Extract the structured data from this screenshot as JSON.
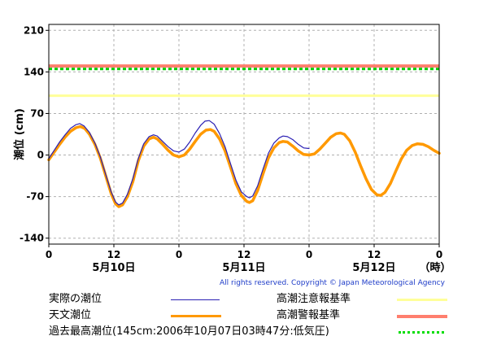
{
  "chart_data": {
    "type": "line",
    "ylabel": "潮位 (cm)",
    "ylim": [
      -150,
      220
    ],
    "yticks": [
      -140,
      -70,
      0,
      70,
      140,
      210
    ],
    "xlim": [
      0,
      72
    ],
    "xticks": [
      {
        "hour": 0,
        "label": "0"
      },
      {
        "hour": 12,
        "label": "12"
      },
      {
        "hour": 24,
        "label": "0"
      },
      {
        "hour": 36,
        "label": "12"
      },
      {
        "hour": 48,
        "label": "0"
      },
      {
        "hour": 60,
        "label": "12"
      },
      {
        "hour": 72,
        "label": "0"
      }
    ],
    "date_labels": [
      {
        "hour": 12,
        "label": "5月10日"
      },
      {
        "hour": 36,
        "label": "5月11日"
      },
      {
        "hour": 60,
        "label": "5月12日"
      }
    ],
    "x_unit_label": "（時）",
    "grid": true,
    "series": [
      {
        "name": "天文潮位",
        "color": "#ff9900",
        "points": [
          [
            0,
            -8
          ],
          [
            1,
            5
          ],
          [
            2,
            18
          ],
          [
            3,
            30
          ],
          [
            4,
            40
          ],
          [
            5,
            46
          ],
          [
            5.8,
            48
          ],
          [
            6.6,
            45
          ],
          [
            7.5,
            35
          ],
          [
            8.5,
            18
          ],
          [
            9.5,
            -5
          ],
          [
            10.5,
            -35
          ],
          [
            11.5,
            -65
          ],
          [
            12.3,
            -82
          ],
          [
            12.9,
            -87
          ],
          [
            13.6,
            -84
          ],
          [
            14.5,
            -70
          ],
          [
            15.5,
            -45
          ],
          [
            16.5,
            -10
          ],
          [
            17.5,
            15
          ],
          [
            18.5,
            27
          ],
          [
            19.3,
            30
          ],
          [
            20,
            27
          ],
          [
            21,
            18
          ],
          [
            22,
            8
          ],
          [
            23,
            0
          ],
          [
            24,
            -3
          ],
          [
            25,
            0
          ],
          [
            26,
            10
          ],
          [
            27,
            23
          ],
          [
            28,
            35
          ],
          [
            29,
            42
          ],
          [
            29.8,
            43
          ],
          [
            30.5,
            40
          ],
          [
            31.5,
            27
          ],
          [
            32.5,
            7
          ],
          [
            33.5,
            -20
          ],
          [
            34.5,
            -48
          ],
          [
            35.5,
            -68
          ],
          [
            36.5,
            -78
          ],
          [
            37,
            -80
          ],
          [
            37.6,
            -77
          ],
          [
            38.5,
            -60
          ],
          [
            39.5,
            -32
          ],
          [
            40.5,
            -5
          ],
          [
            41.5,
            12
          ],
          [
            42.5,
            21
          ],
          [
            43.2,
            23
          ],
          [
            44,
            22
          ],
          [
            45,
            15
          ],
          [
            46,
            7
          ],
          [
            47,
            1
          ],
          [
            48,
            0
          ],
          [
            49,
            2
          ],
          [
            50,
            10
          ],
          [
            51,
            20
          ],
          [
            52,
            30
          ],
          [
            53,
            36
          ],
          [
            53.8,
            37
          ],
          [
            54.5,
            35
          ],
          [
            55.5,
            24
          ],
          [
            56.5,
            5
          ],
          [
            57.5,
            -18
          ],
          [
            58.5,
            -40
          ],
          [
            59.5,
            -58
          ],
          [
            60.5,
            -67
          ],
          [
            61.2,
            -68
          ],
          [
            62,
            -63
          ],
          [
            63,
            -48
          ],
          [
            64,
            -27
          ],
          [
            65,
            -7
          ],
          [
            66,
            8
          ],
          [
            67,
            16
          ],
          [
            68,
            19
          ],
          [
            69,
            18
          ],
          [
            70,
            14
          ],
          [
            71,
            8
          ],
          [
            72,
            3
          ]
        ]
      },
      {
        "name": "実際の潮位",
        "color": "#2a1fb4",
        "points": [
          [
            0,
            -6
          ],
          [
            1,
            8
          ],
          [
            2,
            22
          ],
          [
            3,
            34
          ],
          [
            4,
            45
          ],
          [
            5,
            51
          ],
          [
            5.7,
            53
          ],
          [
            6.5,
            49
          ],
          [
            7.5,
            38
          ],
          [
            8.5,
            20
          ],
          [
            9.5,
            -3
          ],
          [
            10.5,
            -33
          ],
          [
            11.5,
            -62
          ],
          [
            12.3,
            -79
          ],
          [
            12.9,
            -84
          ],
          [
            13.6,
            -81
          ],
          [
            14.5,
            -66
          ],
          [
            15.5,
            -40
          ],
          [
            16.5,
            -6
          ],
          [
            17.5,
            19
          ],
          [
            18.5,
            31
          ],
          [
            19.3,
            34
          ],
          [
            20,
            32
          ],
          [
            21,
            23
          ],
          [
            22,
            14
          ],
          [
            23,
            7
          ],
          [
            24,
            5
          ],
          [
            25,
            10
          ],
          [
            26,
            22
          ],
          [
            27,
            37
          ],
          [
            28,
            50
          ],
          [
            28.8,
            57
          ],
          [
            29.6,
            58
          ],
          [
            30.5,
            52
          ],
          [
            31.5,
            36
          ],
          [
            32.5,
            14
          ],
          [
            33.5,
            -14
          ],
          [
            34.5,
            -42
          ],
          [
            35.5,
            -62
          ],
          [
            36.5,
            -70
          ],
          [
            37,
            -72
          ],
          [
            37.6,
            -69
          ],
          [
            38.5,
            -52
          ],
          [
            39.5,
            -24
          ],
          [
            40.5,
            3
          ],
          [
            41.5,
            20
          ],
          [
            42.5,
            29
          ],
          [
            43.2,
            32
          ],
          [
            44,
            31
          ],
          [
            45,
            26
          ],
          [
            46,
            18
          ],
          [
            47,
            12
          ],
          [
            48,
            11
          ]
        ]
      }
    ],
    "reference_lines": [
      {
        "name": "高潮注意報基準",
        "value": 100,
        "color": "#ffff99"
      },
      {
        "name": "高潮警報基準",
        "value": 150,
        "color": "#ff7f6e"
      },
      {
        "name": "過去最高潮位(145cm:2006年10月07日03時47分:低気圧)",
        "value": 145,
        "color": "#00cc00"
      }
    ]
  },
  "copyright": "All rights reserved. Copyright © Japan Meteorological Agency",
  "legend": {
    "actual": "実際の潮位",
    "astronomical": "天文潮位",
    "record": "過去最高潮位(145cm:2006年10月07日03時47分:低気圧)",
    "caution": "高潮注意報基準",
    "warning": "高潮警報基準"
  }
}
